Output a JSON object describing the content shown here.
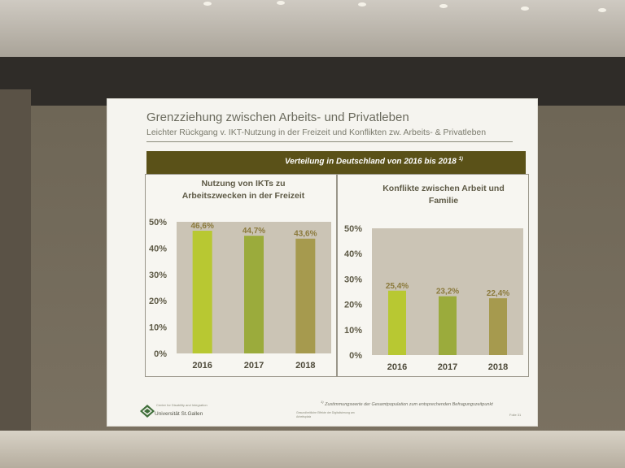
{
  "slide": {
    "title": "Grenzziehung zwischen Arbeits- und Privatleben",
    "subtitle": "Leichter Rückgang v. IKT-Nutzung in der Freizeit und Konflikten zw. Arbeits- & Privatleben",
    "banner": "Verteilung in Deutschland von 2016 bis 2018",
    "banner_footnote_mark": "1)",
    "footnote_mark": "1)",
    "footnote": "Zustimmungswerte der Gesamtpopulation zum entsprechenden Befragungszeitpunkt",
    "logo_top": "Center for Disability and Integration",
    "logo_name": "Universität St.Gallen",
    "footer_mid": "Gesundheitliche Effekte der Digitalisierung am Arbeitsplatz",
    "page": "Folie 31"
  },
  "chart_data": [
    {
      "type": "bar",
      "title": "Nutzung von IKTs zu Arbeitszwecken in der Freizeit",
      "categories": [
        "2016",
        "2017",
        "2018"
      ],
      "values": [
        46.6,
        44.7,
        43.6
      ],
      "labels": [
        "46,6%",
        "44,7%",
        "43,6%"
      ],
      "colors": [
        "#b8c832",
        "#9bab3c",
        "#a69a4e"
      ],
      "ylim": [
        0,
        50
      ],
      "yticks": [
        "0%",
        "10%",
        "20%",
        "30%",
        "40%",
        "50%"
      ],
      "grid": false,
      "legend": "none"
    },
    {
      "type": "bar",
      "title": "Konflikte zwischen Arbeit und Familie",
      "categories": [
        "2016",
        "2017",
        "2018"
      ],
      "values": [
        25.4,
        23.2,
        22.4
      ],
      "labels": [
        "25,4%",
        "23,2%",
        "22,4%"
      ],
      "colors": [
        "#b8c832",
        "#9bab3c",
        "#a69a4e"
      ],
      "ylim": [
        0,
        50
      ],
      "yticks": [
        "0%",
        "10%",
        "20%",
        "30%",
        "40%",
        "50%"
      ],
      "grid": false,
      "legend": "none"
    }
  ]
}
